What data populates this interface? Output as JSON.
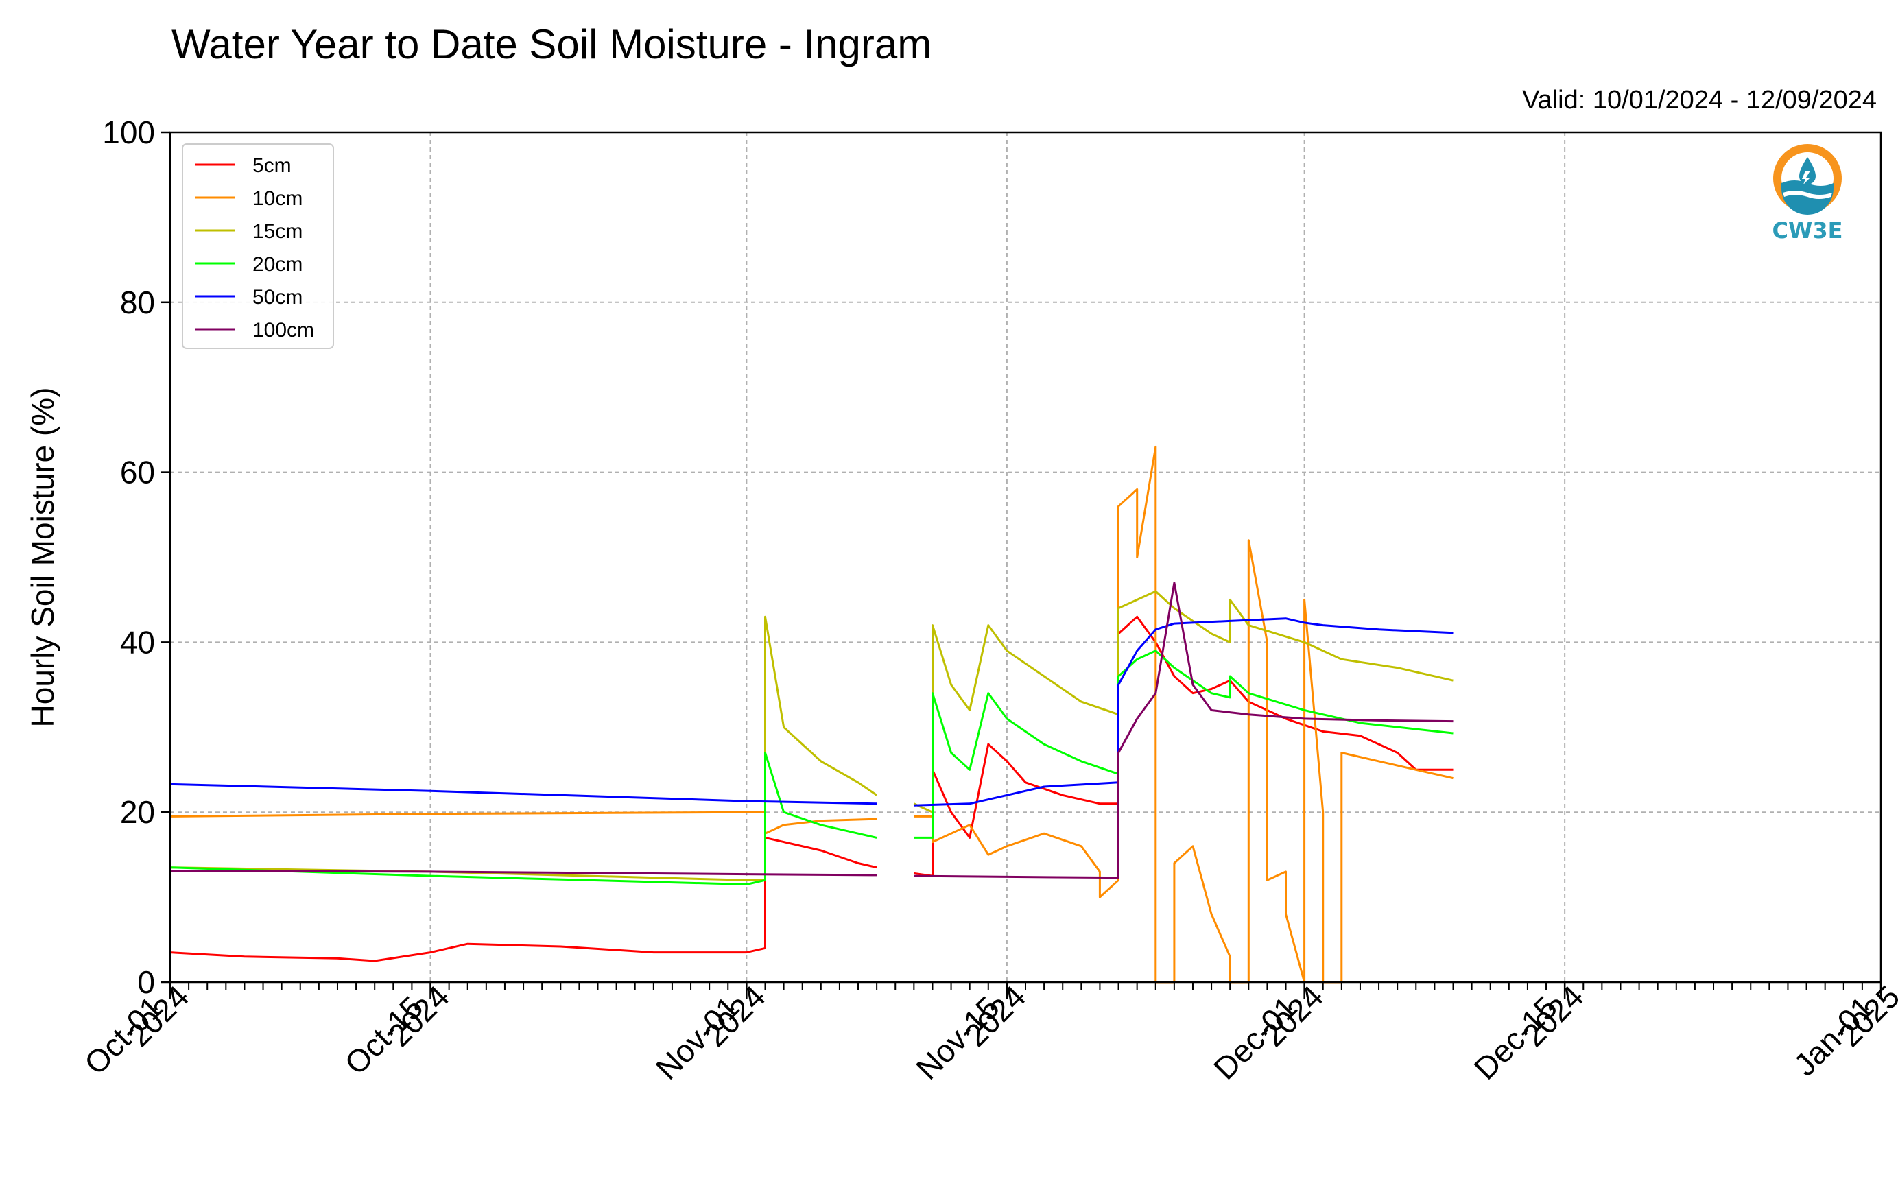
{
  "chart_data": {
    "type": "line",
    "title": "Water Year to Date Soil Moisture - Ingram",
    "subtitle": "Valid: 10/01/2024 - 12/09/2024",
    "xlabel": "",
    "ylabel": "Hourly Soil Moisture (%)",
    "xlim": [
      "2024-10-01",
      "2025-01-01"
    ],
    "ylim": [
      0,
      100
    ],
    "grid": true,
    "legend_position": "top-left",
    "yticks": [
      "0",
      "20",
      "40",
      "60",
      "80",
      "100"
    ],
    "xticks": [
      {
        "date": "2024-10-01",
        "line1": "Oct-01",
        "line2": "2024"
      },
      {
        "date": "2024-10-15",
        "line1": "Oct-15",
        "line2": "2024"
      },
      {
        "date": "2024-11-01",
        "line1": "Nov-01",
        "line2": "2024"
      },
      {
        "date": "2024-11-15",
        "line1": "Nov-15",
        "line2": "2024"
      },
      {
        "date": "2024-12-01",
        "line1": "Dec-01",
        "line2": "2024"
      },
      {
        "date": "2024-12-15",
        "line1": "Dec-15",
        "line2": "2024"
      },
      {
        "date": "2025-01-01",
        "line1": "Jan-01",
        "line2": "2025"
      }
    ],
    "series": [
      {
        "name": "5cm",
        "color": "#ff0000",
        "points": [
          [
            "2024-10-01",
            3.5
          ],
          [
            "2024-10-05",
            3.0
          ],
          [
            "2024-10-10",
            2.8
          ],
          [
            "2024-10-12",
            2.5
          ],
          [
            "2024-10-15",
            3.5
          ],
          [
            "2024-10-17",
            4.5
          ],
          [
            "2024-10-22",
            4.2
          ],
          [
            "2024-10-27",
            3.5
          ],
          [
            "2024-11-01",
            3.5
          ],
          [
            "2024-11-02",
            4.0
          ],
          [
            "2024-11-02",
            17.0
          ],
          [
            "2024-11-03",
            16.5
          ],
          [
            "2024-11-05",
            15.5
          ],
          [
            "2024-11-07",
            14.0
          ],
          [
            "2024-11-08",
            13.5
          ],
          [
            "2024-11-09",
            null
          ],
          [
            "2024-11-10",
            12.8
          ],
          [
            "2024-11-11",
            12.5
          ],
          [
            "2024-11-11",
            25.0
          ],
          [
            "2024-11-12",
            20.0
          ],
          [
            "2024-11-13",
            17.0
          ],
          [
            "2024-11-14",
            28.0
          ],
          [
            "2024-11-15",
            26.0
          ],
          [
            "2024-11-16",
            23.5
          ],
          [
            "2024-11-18",
            22.0
          ],
          [
            "2024-11-20",
            21.0
          ],
          [
            "2024-11-21",
            21.0
          ],
          [
            "2024-11-21",
            41.0
          ],
          [
            "2024-11-22",
            43.0
          ],
          [
            "2024-11-23",
            40.0
          ],
          [
            "2024-11-24",
            36.0
          ],
          [
            "2024-11-25",
            34.0
          ],
          [
            "2024-11-26",
            34.5
          ],
          [
            "2024-11-27",
            35.5
          ],
          [
            "2024-11-28",
            33.0
          ],
          [
            "2024-11-30",
            31.0
          ],
          [
            "2024-12-02",
            29.5
          ],
          [
            "2024-12-04",
            29.0
          ],
          [
            "2024-12-06",
            27.0
          ],
          [
            "2024-12-07",
            25.0
          ],
          [
            "2024-12-09",
            25.0
          ]
        ]
      },
      {
        "name": "10cm",
        "color": "#ff8c00",
        "points": [
          [
            "2024-10-01",
            19.5
          ],
          [
            "2024-10-15",
            19.8
          ],
          [
            "2024-11-01",
            20.0
          ],
          [
            "2024-11-02",
            20.0
          ],
          [
            "2024-11-02",
            17.5
          ],
          [
            "2024-11-03",
            18.5
          ],
          [
            "2024-11-05",
            19.0
          ],
          [
            "2024-11-08",
            19.2
          ],
          [
            "2024-11-09",
            null
          ],
          [
            "2024-11-10",
            19.5
          ],
          [
            "2024-11-11",
            19.5
          ],
          [
            "2024-11-11",
            16.5
          ],
          [
            "2024-11-12",
            17.5
          ],
          [
            "2024-11-13",
            18.5
          ],
          [
            "2024-11-14",
            15.0
          ],
          [
            "2024-11-15",
            16.0
          ],
          [
            "2024-11-17",
            17.5
          ],
          [
            "2024-11-19",
            16.0
          ],
          [
            "2024-11-20",
            13.0
          ],
          [
            "2024-11-20",
            10.0
          ],
          [
            "2024-11-21",
            12.0
          ],
          [
            "2024-11-21",
            56.0
          ],
          [
            "2024-11-22",
            58.0
          ],
          [
            "2024-11-22",
            50.0
          ],
          [
            "2024-11-23",
            63.0
          ],
          [
            "2024-11-23",
            0.0
          ],
          [
            "2024-11-24",
            0.0
          ],
          [
            "2024-11-24",
            14.0
          ],
          [
            "2024-11-25",
            16.0
          ],
          [
            "2024-11-26",
            8.0
          ],
          [
            "2024-11-27",
            3.0
          ],
          [
            "2024-11-27",
            0.0
          ],
          [
            "2024-11-28",
            0.0
          ],
          [
            "2024-11-28",
            52.0
          ],
          [
            "2024-11-29",
            40.0
          ],
          [
            "2024-11-29",
            12.0
          ],
          [
            "2024-11-30",
            13.0
          ],
          [
            "2024-11-30",
            8.0
          ],
          [
            "2024-12-01",
            0.0
          ],
          [
            "2024-12-01",
            45.0
          ],
          [
            "2024-12-02",
            20.0
          ],
          [
            "2024-12-02",
            0.0
          ],
          [
            "2024-12-03",
            0.0
          ],
          [
            "2024-12-03",
            27.0
          ],
          [
            "2024-12-05",
            26.0
          ],
          [
            "2024-12-07",
            25.0
          ],
          [
            "2024-12-09",
            24.0
          ]
        ]
      },
      {
        "name": "15cm",
        "color": "#bfbf00",
        "points": [
          [
            "2024-10-01",
            13.5
          ],
          [
            "2024-10-15",
            13.0
          ],
          [
            "2024-11-01",
            12.0
          ],
          [
            "2024-11-02",
            12.0
          ],
          [
            "2024-11-02",
            43.0
          ],
          [
            "2024-11-03",
            30.0
          ],
          [
            "2024-11-05",
            26.0
          ],
          [
            "2024-11-07",
            23.5
          ],
          [
            "2024-11-08",
            22.0
          ],
          [
            "2024-11-09",
            null
          ],
          [
            "2024-11-10",
            21.0
          ],
          [
            "2024-11-11",
            20.0
          ],
          [
            "2024-11-11",
            42.0
          ],
          [
            "2024-11-12",
            35.0
          ],
          [
            "2024-11-13",
            32.0
          ],
          [
            "2024-11-14",
            42.0
          ],
          [
            "2024-11-15",
            39.0
          ],
          [
            "2024-11-17",
            36.0
          ],
          [
            "2024-11-19",
            33.0
          ],
          [
            "2024-11-21",
            31.5
          ],
          [
            "2024-11-21",
            44.0
          ],
          [
            "2024-11-22",
            45.0
          ],
          [
            "2024-11-23",
            46.0
          ],
          [
            "2024-11-24",
            44.0
          ],
          [
            "2024-11-26",
            41.0
          ],
          [
            "2024-11-27",
            40.0
          ],
          [
            "2024-11-27",
            45.0
          ],
          [
            "2024-11-28",
            42.0
          ],
          [
            "2024-12-01",
            40.0
          ],
          [
            "2024-12-03",
            38.0
          ],
          [
            "2024-12-06",
            37.0
          ],
          [
            "2024-12-09",
            35.5
          ]
        ]
      },
      {
        "name": "20cm",
        "color": "#00ff00",
        "points": [
          [
            "2024-10-01",
            13.5
          ],
          [
            "2024-10-15",
            12.5
          ],
          [
            "2024-11-01",
            11.5
          ],
          [
            "2024-11-02",
            12.0
          ],
          [
            "2024-11-02",
            27.0
          ],
          [
            "2024-11-03",
            20.0
          ],
          [
            "2024-11-05",
            18.5
          ],
          [
            "2024-11-07",
            17.5
          ],
          [
            "2024-11-08",
            17.0
          ],
          [
            "2024-11-09",
            null
          ],
          [
            "2024-11-10",
            17.0
          ],
          [
            "2024-11-11",
            17.0
          ],
          [
            "2024-11-11",
            34.0
          ],
          [
            "2024-11-12",
            27.0
          ],
          [
            "2024-11-13",
            25.0
          ],
          [
            "2024-11-14",
            34.0
          ],
          [
            "2024-11-15",
            31.0
          ],
          [
            "2024-11-17",
            28.0
          ],
          [
            "2024-11-19",
            26.0
          ],
          [
            "2024-11-21",
            24.5
          ],
          [
            "2024-11-21",
            36.0
          ],
          [
            "2024-11-22",
            38.0
          ],
          [
            "2024-11-23",
            39.0
          ],
          [
            "2024-11-24",
            37.0
          ],
          [
            "2024-11-26",
            34.0
          ],
          [
            "2024-11-27",
            33.5
          ],
          [
            "2024-11-27",
            36.0
          ],
          [
            "2024-11-28",
            34.0
          ],
          [
            "2024-12-01",
            32.0
          ],
          [
            "2024-12-04",
            30.5
          ],
          [
            "2024-12-09",
            29.3
          ]
        ]
      },
      {
        "name": "50cm",
        "color": "#0000ff",
        "points": [
          [
            "2024-10-01",
            23.3
          ],
          [
            "2024-10-15",
            22.5
          ],
          [
            "2024-11-01",
            21.3
          ],
          [
            "2024-11-08",
            21.0
          ],
          [
            "2024-11-09",
            null
          ],
          [
            "2024-11-10",
            20.8
          ],
          [
            "2024-11-13",
            21.0
          ],
          [
            "2024-11-15",
            22.0
          ],
          [
            "2024-11-17",
            23.0
          ],
          [
            "2024-11-21",
            23.5
          ],
          [
            "2024-11-21",
            35.0
          ],
          [
            "2024-11-22",
            39.0
          ],
          [
            "2024-11-23",
            41.5
          ],
          [
            "2024-11-24",
            42.2
          ],
          [
            "2024-11-27",
            42.5
          ],
          [
            "2024-11-30",
            42.8
          ],
          [
            "2024-12-01",
            42.3
          ],
          [
            "2024-12-02",
            42.0
          ],
          [
            "2024-12-05",
            41.5
          ],
          [
            "2024-12-09",
            41.1
          ]
        ]
      },
      {
        "name": "100cm",
        "color": "#800060",
        "points": [
          [
            "2024-10-01",
            13.1
          ],
          [
            "2024-10-15",
            13.0
          ],
          [
            "2024-11-01",
            12.7
          ],
          [
            "2024-11-08",
            12.6
          ],
          [
            "2024-11-09",
            null
          ],
          [
            "2024-11-10",
            12.5
          ],
          [
            "2024-11-15",
            12.4
          ],
          [
            "2024-11-21",
            12.3
          ],
          [
            "2024-11-21",
            27.0
          ],
          [
            "2024-11-22",
            31.0
          ],
          [
            "2024-11-23",
            34.0
          ],
          [
            "2024-11-24",
            47.0
          ],
          [
            "2024-11-25",
            35.0
          ],
          [
            "2024-11-26",
            32.0
          ],
          [
            "2024-11-28",
            31.5
          ],
          [
            "2024-12-01",
            31.0
          ],
          [
            "2024-12-05",
            30.8
          ],
          [
            "2024-12-09",
            30.7
          ]
        ]
      }
    ]
  },
  "logo": {
    "text": "CW3E"
  }
}
